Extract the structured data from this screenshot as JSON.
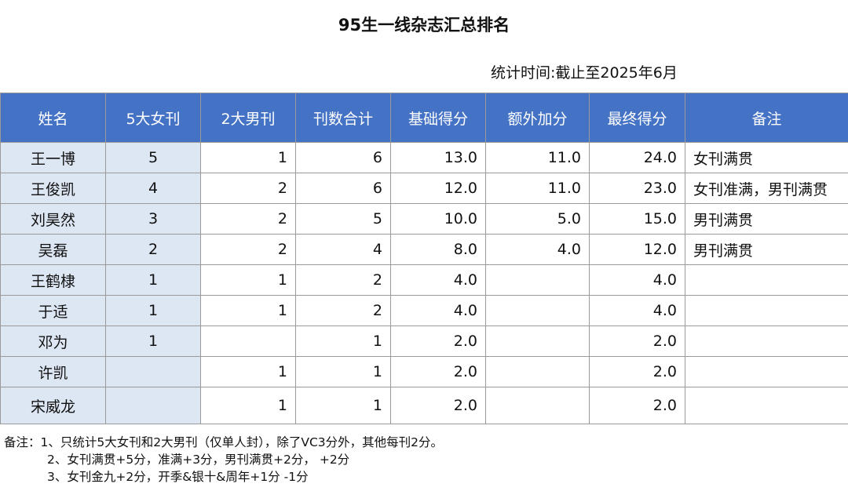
{
  "title": "95生一线杂志汇总排名",
  "stat_time": "统计时间:截止至2025年6月",
  "columns": [
    "姓名",
    "5大女刊",
    "2大男刊",
    "刊数合计",
    "基础得分",
    "额外加分",
    "最终得分",
    "备注"
  ],
  "rows": [
    {
      "name": "王一博",
      "female": "5",
      "male": "1",
      "total": "6",
      "base": "13.0",
      "extra": "11.0",
      "final": "24.0",
      "note": "女刊满贯"
    },
    {
      "name": "王俊凯",
      "female": "4",
      "male": "2",
      "total": "6",
      "base": "12.0",
      "extra": "11.0",
      "final": "23.0",
      "note": "女刊准满，男刊满贯"
    },
    {
      "name": "刘昊然",
      "female": "3",
      "male": "2",
      "total": "5",
      "base": "10.0",
      "extra": "5.0",
      "final": "15.0",
      "note": "男刊满贯"
    },
    {
      "name": "吴磊",
      "female": "2",
      "male": "2",
      "total": "4",
      "base": "8.0",
      "extra": "4.0",
      "final": "12.0",
      "note": "男刊满贯"
    },
    {
      "name": "王鹤棣",
      "female": "1",
      "male": "1",
      "total": "2",
      "base": "4.0",
      "extra": "",
      "final": "4.0",
      "note": ""
    },
    {
      "name": "于适",
      "female": "1",
      "male": "1",
      "total": "2",
      "base": "4.0",
      "extra": "",
      "final": "4.0",
      "note": ""
    },
    {
      "name": "邓为",
      "female": "1",
      "male": "",
      "total": "1",
      "base": "2.0",
      "extra": "",
      "final": "2.0",
      "note": ""
    },
    {
      "name": "许凯",
      "female": "",
      "male": "1",
      "total": "1",
      "base": "2.0",
      "extra": "",
      "final": "2.0",
      "note": ""
    },
    {
      "name": "宋威龙",
      "female": "",
      "male": "1",
      "total": "1",
      "base": "2.0",
      "extra": "",
      "final": "2.0",
      "note": ""
    }
  ],
  "footnotes": {
    "label": "备注：",
    "lines": [
      "1、只统计5大女刊和2大男刊（仅单人封），除了VC3分外，其他每刊2分。",
      "2、女刊满贯+5分，准满+3分，男刊满贯+2分，  +2分",
      "3、女刊金九+2分，开季&银十&周年+1分      -1分"
    ]
  }
}
